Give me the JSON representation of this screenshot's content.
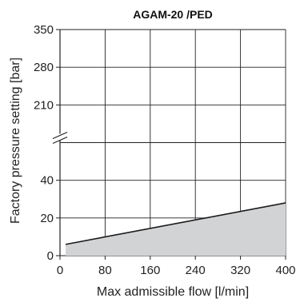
{
  "chart_data": {
    "type": "area",
    "title": "AGAM-20 /PED",
    "xlabel": "Max admissible flow [l/min]",
    "ylabel": "Factory pressure setting [bar]",
    "xlim": [
      0,
      400
    ],
    "x_ticks": [
      "0",
      "80",
      "160",
      "240",
      "320",
      "400"
    ],
    "y_ticks_lower": [
      "0",
      "20",
      "40"
    ],
    "y_ticks_upper": [
      "210",
      "280",
      "350"
    ],
    "y_axis_break": true,
    "grid": true,
    "series": [
      {
        "x": [
          10,
          400
        ],
        "y": [
          6,
          28
        ]
      }
    ],
    "colors": {
      "fill": "#d2d3d5",
      "line": "#1a1a1a",
      "grid": "#222222"
    }
  }
}
